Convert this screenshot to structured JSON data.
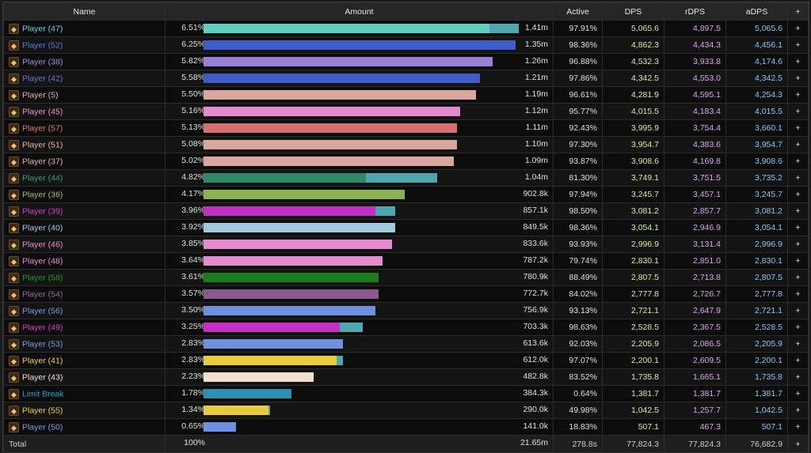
{
  "headers": {
    "name": "Name",
    "amount": "Amount",
    "active": "Active",
    "dps": "DPS",
    "rdps": "rDPS",
    "adps": "aDPS",
    "plus": "+"
  },
  "rows": [
    {
      "name": "Player (47)",
      "name_color": "#6ccfe2",
      "pct": "6.51%",
      "amount": "1.41m",
      "active": "97.91%",
      "dps": "5,065.6",
      "rdps": "4,897.5",
      "adps": "5,065.6",
      "bar_frac": 0.88,
      "bar_color": "#5fcfc2",
      "bar2_frac": 0.09,
      "bar2_color": "#4fa7ad",
      "icon": "job-icon-47"
    },
    {
      "name": "Player (52)",
      "name_color": "#5d7bd8",
      "pct": "6.25%",
      "amount": "1.35m",
      "active": "98.36%",
      "dps": "4,862.3",
      "rdps": "4,434.3",
      "adps": "4,456.1",
      "bar_frac": 0.96,
      "bar_color": "#3f5dc9",
      "bar2_frac": 0,
      "bar2_color": "",
      "icon": "job-icon-52"
    },
    {
      "name": "Player (38)",
      "name_color": "#a98ee0",
      "pct": "5.82%",
      "amount": "1.26m",
      "active": "96.88%",
      "dps": "4,532.3",
      "rdps": "3,933.8",
      "adps": "4,174.6",
      "bar_frac": 0.89,
      "bar_color": "#9a7fd6",
      "bar2_frac": 0,
      "bar2_color": "",
      "icon": "job-icon-38"
    },
    {
      "name": "Player (42)",
      "name_color": "#5d7bd8",
      "pct": "5.58%",
      "amount": "1.21m",
      "active": "97.86%",
      "dps": "4,342.5",
      "rdps": "4,553.0",
      "adps": "4,342.5",
      "bar_frac": 0.85,
      "bar_color": "#3f5dc9",
      "bar2_frac": 0,
      "bar2_color": "",
      "icon": "job-icon-42"
    },
    {
      "name": "Player (5)",
      "name_color": "#e5b5ad",
      "pct": "5.50%",
      "amount": "1.19m",
      "active": "96.61%",
      "dps": "4,281.9",
      "rdps": "4,595.1",
      "adps": "4,254.3",
      "bar_frac": 0.84,
      "bar_color": "#d9a6a0",
      "bar2_frac": 0,
      "bar2_color": "",
      "icon": "job-icon-5"
    },
    {
      "name": "Player (45)",
      "name_color": "#ee8fd3",
      "pct": "5.16%",
      "amount": "1.12m",
      "active": "95.77%",
      "dps": "4,015.5",
      "rdps": "4,183.4",
      "adps": "4,015.5",
      "bar_frac": 0.79,
      "bar_color": "#e68ad0",
      "bar2_frac": 0,
      "bar2_color": "",
      "icon": "job-icon-45"
    },
    {
      "name": "Player (57)",
      "name_color": "#e07b7b",
      "pct": "5.13%",
      "amount": "1.11m",
      "active": "92.43%",
      "dps": "3,995.9",
      "rdps": "3,754.4",
      "adps": "3,660.1",
      "bar_frac": 0.78,
      "bar_color": "#d86f6f",
      "bar2_frac": 0,
      "bar2_color": "",
      "icon": "job-icon-57"
    },
    {
      "name": "Player (51)",
      "name_color": "#e5b5ad",
      "pct": "5.08%",
      "amount": "1.10m",
      "active": "97.30%",
      "dps": "3,954.7",
      "rdps": "4,383.6",
      "adps": "3,954.7",
      "bar_frac": 0.78,
      "bar_color": "#d9a6a0",
      "bar2_frac": 0,
      "bar2_color": "",
      "icon": "job-icon-51"
    },
    {
      "name": "Player (37)",
      "name_color": "#e5b5ad",
      "pct": "5.02%",
      "amount": "1.09m",
      "active": "93.87%",
      "dps": "3,908.6",
      "rdps": "4,169.8",
      "adps": "3,908.6",
      "bar_frac": 0.77,
      "bar_color": "#d9a6a0",
      "bar2_frac": 0,
      "bar2_color": "",
      "icon": "job-icon-37"
    },
    {
      "name": "Player (44)",
      "name_color": "#3aa07a",
      "pct": "4.82%",
      "amount": "1.04m",
      "active": "81.30%",
      "dps": "3,749.1",
      "rdps": "3,751.5",
      "adps": "3,735.2",
      "bar_frac": 0.5,
      "bar_color": "#2f8a6b",
      "bar2_frac": 0.22,
      "bar2_color": "#4fa7ad",
      "icon": "job-icon-44"
    },
    {
      "name": "Player (36)",
      "name_color": "#a7c25e",
      "pct": "4.17%",
      "amount": "902.8k",
      "active": "97.94%",
      "dps": "3,245.7",
      "rdps": "3,457.1",
      "adps": "3,245.7",
      "bar_frac": 0.62,
      "bar_color": "#8bb253",
      "bar2_frac": 0,
      "bar2_color": "",
      "icon": "job-icon-36"
    },
    {
      "name": "Player (39)",
      "name_color": "#d33fd0",
      "pct": "3.96%",
      "amount": "857.1k",
      "active": "98.50%",
      "dps": "3,081.2",
      "rdps": "2,857.7",
      "adps": "3,081.2",
      "bar_frac": 0.53,
      "bar_color": "#c42fc4",
      "bar2_frac": 0.06,
      "bar2_color": "#4fa7ad",
      "icon": "job-icon-39"
    },
    {
      "name": "Player (40)",
      "name_color": "#a9cfe6",
      "pct": "3.92%",
      "amount": "849.5k",
      "active": "98.36%",
      "dps": "3,054.1",
      "rdps": "2,946.9",
      "adps": "3,054.1",
      "bar_frac": 0.59,
      "bar_color": "#a3c9df",
      "bar2_frac": 0,
      "bar2_color": "",
      "icon": "job-icon-40"
    },
    {
      "name": "Player (46)",
      "name_color": "#ee8fd3",
      "pct": "3.85%",
      "amount": "833.6k",
      "active": "93.93%",
      "dps": "2,996.9",
      "rdps": "3,131.4",
      "adps": "2,996.9",
      "bar_frac": 0.58,
      "bar_color": "#e68ad0",
      "bar2_frac": 0,
      "bar2_color": "",
      "icon": "job-icon-46"
    },
    {
      "name": "Player (48)",
      "name_color": "#ee8fd3",
      "pct": "3.64%",
      "amount": "787.2k",
      "active": "79.74%",
      "dps": "2,830.1",
      "rdps": "2,851.0",
      "adps": "2,830.1",
      "bar_frac": 0.55,
      "bar_color": "#e68ad0",
      "bar2_frac": 0,
      "bar2_color": "",
      "icon": "job-icon-48"
    },
    {
      "name": "Player (58)",
      "name_color": "#1f9a35",
      "pct": "3.61%",
      "amount": "780.9k",
      "active": "88.49%",
      "dps": "2,807.5",
      "rdps": "2,713.8",
      "adps": "2,807.5",
      "bar_frac": 0.54,
      "bar_color": "#1c7d1f",
      "bar2_frac": 0,
      "bar2_color": "",
      "icon": "job-icon-58"
    },
    {
      "name": "Player (54)",
      "name_color": "#9a6aa0",
      "pct": "3.57%",
      "amount": "772.7k",
      "active": "84.02%",
      "dps": "2,777.8",
      "rdps": "2,726.7",
      "adps": "2,777.8",
      "bar_frac": 0.54,
      "bar_color": "#8a5a8f",
      "bar2_frac": 0,
      "bar2_color": "",
      "icon": "job-icon-54"
    },
    {
      "name": "Player (56)",
      "name_color": "#7e9be6",
      "pct": "3.50%",
      "amount": "756.9k",
      "active": "93.13%",
      "dps": "2,721.1",
      "rdps": "2,647.9",
      "adps": "2,721.1",
      "bar_frac": 0.53,
      "bar_color": "#6f8fdf",
      "bar2_frac": 0,
      "bar2_color": "",
      "icon": "job-icon-56"
    },
    {
      "name": "Player (49)",
      "name_color": "#d33fd0",
      "pct": "3.25%",
      "amount": "703.3k",
      "active": "98.63%",
      "dps": "2,528.5",
      "rdps": "2,367.5",
      "adps": "2,528.5",
      "bar_frac": 0.42,
      "bar_color": "#c42fc4",
      "bar2_frac": 0.07,
      "bar2_color": "#4fa7ad",
      "icon": "job-icon-49"
    },
    {
      "name": "Player (53)",
      "name_color": "#7e9be6",
      "pct": "2.83%",
      "amount": "613.6k",
      "active": "92.03%",
      "dps": "2,205.9",
      "rdps": "2,086.5",
      "adps": "2,205.9",
      "bar_frac": 0.43,
      "bar_color": "#6f8fdf",
      "bar2_frac": 0,
      "bar2_color": "",
      "icon": "job-icon-53"
    },
    {
      "name": "Player (41)",
      "name_color": "#f0d04a",
      "pct": "2.83%",
      "amount": "612.0k",
      "active": "97.07%",
      "dps": "2,200.1",
      "rdps": "2,609.5",
      "adps": "2,200.1",
      "bar_frac": 0.41,
      "bar_color": "#e8cb3e",
      "bar2_frac": 0.02,
      "bar2_color": "#4fa7ad",
      "icon": "job-icon-41"
    },
    {
      "name": "Player (43)",
      "name_color": "#f2e1cf",
      "pct": "2.23%",
      "amount": "482.8k",
      "active": "83.52%",
      "dps": "1,735.8",
      "rdps": "1,665.1",
      "adps": "1,735.8",
      "bar_frac": 0.34,
      "bar_color": "#f0e0cf",
      "bar2_frac": 0,
      "bar2_color": "",
      "icon": "job-icon-43"
    },
    {
      "name": "Limit Break",
      "name_color": "#2f9fc0",
      "pct": "1.78%",
      "amount": "384.3k",
      "active": "0.64%",
      "dps": "1,381.7",
      "rdps": "1,381.7",
      "adps": "1,381.7",
      "bar_frac": 0.27,
      "bar_color": "#2a8fb0",
      "bar2_frac": 0,
      "bar2_color": "",
      "icon": "limit-break-icon"
    },
    {
      "name": "Player (55)",
      "name_color": "#f0d04a",
      "pct": "1.34%",
      "amount": "290.0k",
      "active": "49.98%",
      "dps": "1,042.5",
      "rdps": "1,257.7",
      "adps": "1,042.5",
      "bar_frac": 0.2,
      "bar_color": "#e8cb3e",
      "bar2_frac": 0.005,
      "bar2_color": "#4fa7ad",
      "icon": "job-icon-55"
    },
    {
      "name": "Player (50)",
      "name_color": "#7e9be6",
      "pct": "0.65%",
      "amount": "141.0k",
      "active": "18.83%",
      "dps": "507.1",
      "rdps": "467.3",
      "adps": "507.1",
      "bar_frac": 0.1,
      "bar_color": "#6f8fdf",
      "bar2_frac": 0,
      "bar2_color": "",
      "icon": "job-icon-50"
    }
  ],
  "total": {
    "name": "Total",
    "pct": "100%",
    "amount": "21.65m",
    "active": "278.8s",
    "dps": "77,824.3",
    "rdps": "77,824.3",
    "adps": "76,682.9",
    "plus": "+"
  }
}
